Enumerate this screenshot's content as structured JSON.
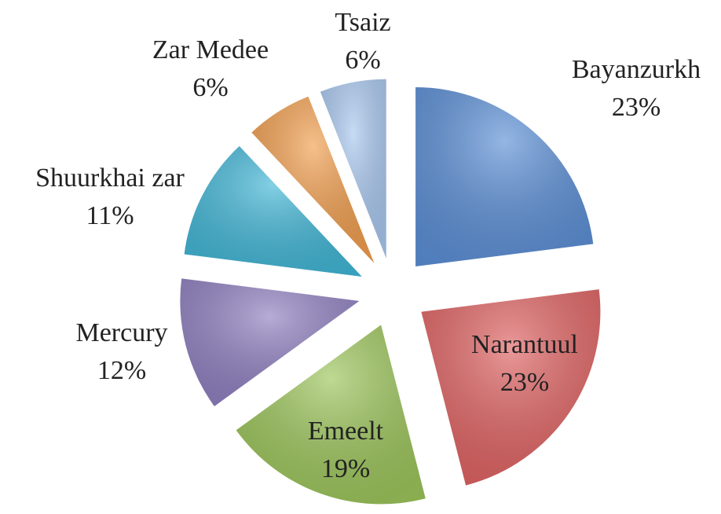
{
  "chart_data": {
    "type": "pie",
    "categories": [
      "Bayanzurkh",
      "Narantuul",
      "Emeelt",
      "Mercury",
      "Shuurkhai zar",
      "Zar Medee",
      "Tsaiz"
    ],
    "values": [
      23,
      23,
      19,
      12,
      11,
      6,
      6
    ],
    "value_labels": [
      "23%",
      "23%",
      "19%",
      "12%",
      "11%",
      "6%",
      "6%"
    ],
    "colors": [
      "#5b8fd6",
      "#e06262",
      "#9cc55a",
      "#8f7fc0",
      "#40b6d6",
      "#f19e4e",
      "#a9c8f0"
    ]
  }
}
